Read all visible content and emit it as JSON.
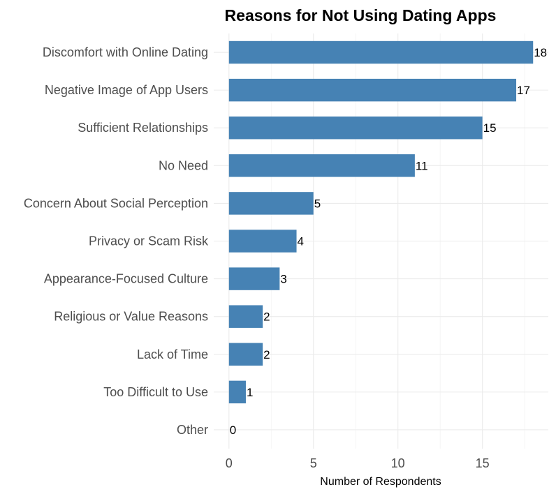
{
  "chart_data": {
    "type": "bar",
    "orientation": "horizontal",
    "title": "Reasons for Not Using Dating Apps",
    "xlabel": "Number of Respondents",
    "ylabel": "",
    "categories": [
      "Discomfort with Online Dating",
      "Negative Image of App Users",
      "Sufficient Relationships",
      "No Need",
      "Concern About Social Perception",
      "Privacy or Scam Risk",
      "Appearance-Focused Culture",
      "Religious or Value Reasons",
      "Lack of Time",
      "Too Difficult to Use",
      "Other"
    ],
    "values": [
      18,
      17,
      15,
      11,
      5,
      4,
      3,
      2,
      2,
      1,
      0
    ],
    "xlim": [
      -0.9,
      18.9
    ],
    "xticks": [
      0,
      5,
      10,
      15
    ],
    "bar_color": "#4682b4",
    "grid": true,
    "legend": "none",
    "data_labels": true
  }
}
